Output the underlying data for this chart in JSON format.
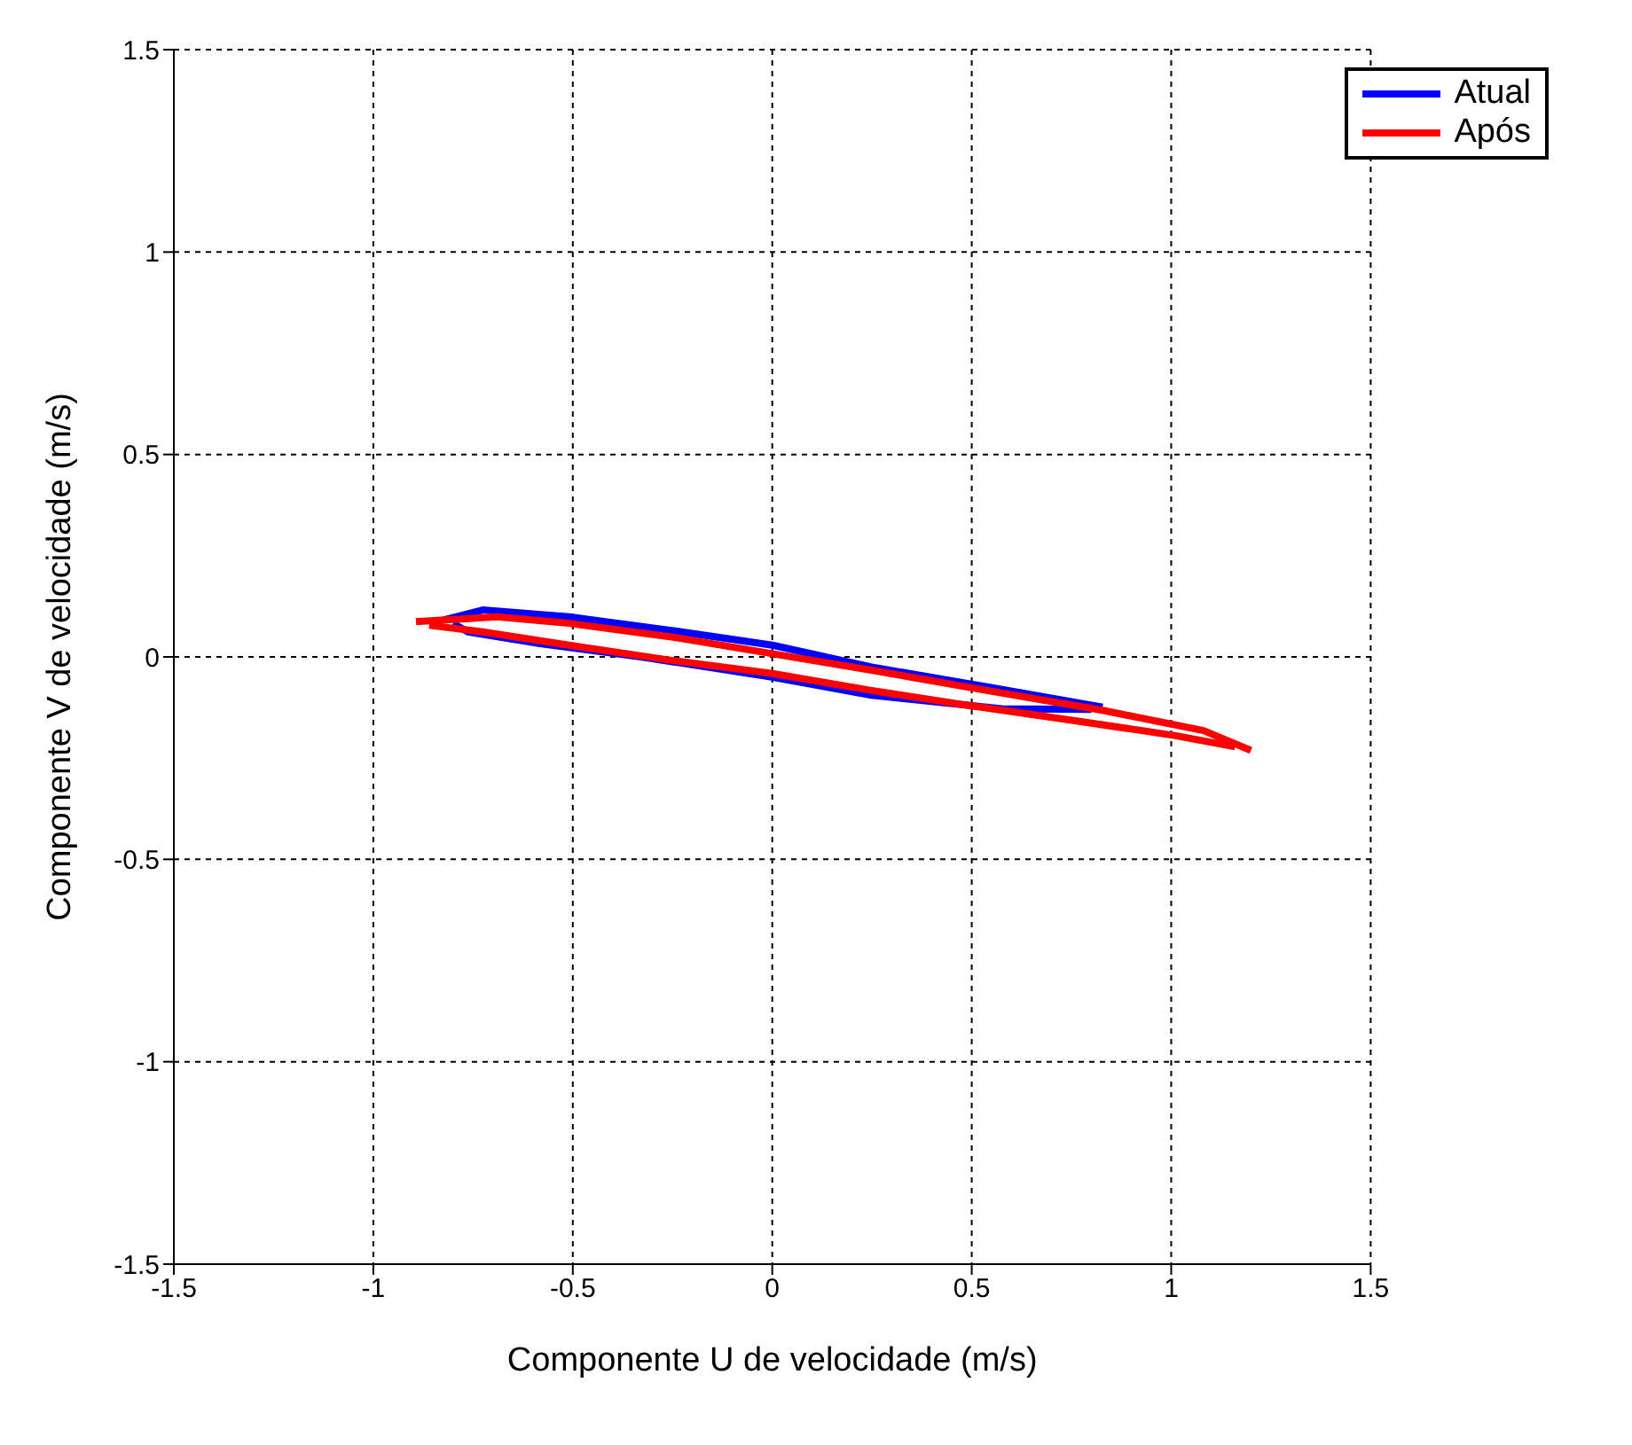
{
  "chart_data": {
    "type": "line",
    "xlabel": "Componente U de velocidade (m/s)",
    "ylabel": "Componente V de velocidade (m/s)",
    "xlim": [
      -1.5,
      1.5
    ],
    "ylim": [
      -1.5,
      1.5
    ],
    "xticks": [
      -1.5,
      -1,
      -0.5,
      0,
      0.5,
      1,
      1.5
    ],
    "yticks": [
      -1.5,
      -1,
      -0.5,
      0,
      0.5,
      1,
      1.5
    ],
    "grid": true,
    "legend": "top right",
    "marker": "none",
    "line_style": "solid",
    "series": [
      {
        "name": "Atual",
        "color": "#0000ff",
        "x": [
          -0.824,
          -0.726,
          -0.51,
          -0.257,
          0,
          0.249,
          0.538,
          0.828
        ],
        "values": [
          0.091,
          0.116,
          0.099,
          0.066,
          0.029,
          -0.025,
          -0.074,
          -0.124
        ]
      },
      {
        "color": "#0000ff",
        "x": [
          -0.8,
          -0.763,
          -0.582,
          -0.329,
          0,
          0.249,
          0.575,
          0.8
        ],
        "values": [
          0.083,
          0.062,
          0.033,
          0,
          -0.05,
          -0.095,
          -0.128,
          -0.13
        ]
      },
      {
        "name": "Após",
        "color": "#ff0000",
        "x": [
          -0.893,
          -0.69,
          -0.51,
          -0.257,
          0,
          0.249,
          0.538,
          0.828,
          1.081,
          1.2
        ],
        "values": [
          0.087,
          0.099,
          0.083,
          0.05,
          0.008,
          -0.033,
          -0.083,
          -0.132,
          -0.182,
          -0.231
        ]
      },
      {
        "color": "#ff0000",
        "x": [
          -0.86,
          -0.726,
          -0.51,
          -0.257,
          0,
          0.249,
          0.466,
          0.755,
          1.008,
          1.16
        ],
        "values": [
          0.078,
          0.062,
          0.029,
          -0.008,
          -0.041,
          -0.083,
          -0.116,
          -0.157,
          -0.194,
          -0.222
        ]
      }
    ]
  }
}
